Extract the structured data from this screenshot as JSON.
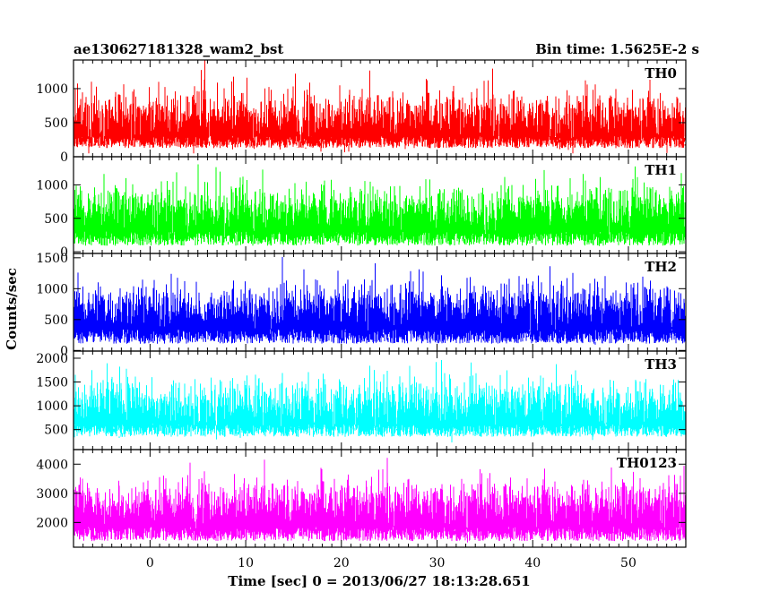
{
  "chart_data": {
    "type": "line",
    "title": "ae130627181328_wam2_bst",
    "subtitle": "Bin time: 1.5625E-2 s",
    "xlabel": "Time [sec] 0 = 2013/06/27 18:13:28.651",
    "ylabel": "Counts/sec",
    "xlim": [
      -8,
      56
    ],
    "x_ticks": [
      0,
      10,
      20,
      30,
      40,
      50
    ],
    "x_tick_labels": [
      "0",
      "10",
      "20",
      "30",
      "40",
      "50"
    ],
    "data_x_range": [
      -8,
      56
    ],
    "bin_time_s": 0.015625,
    "grid": false,
    "panels": [
      {
        "name": "TH0",
        "color": "#ff0000",
        "ylim": [
          0,
          1420
        ],
        "y_ticks": [
          0,
          500,
          1000
        ],
        "y_tick_labels": [
          "0",
          "500",
          "1000"
        ],
        "mean": 560,
        "min": 50,
        "max": 1420
      },
      {
        "name": "TH1",
        "color": "#00ff00",
        "ylim": [
          -25,
          1420
        ],
        "y_ticks": [
          0,
          500,
          1000
        ],
        "y_tick_labels": [
          "0",
          "500",
          "1000"
        ],
        "mean": 610,
        "min": 0,
        "max": 1420
      },
      {
        "name": "TH2",
        "color": "#0000ff",
        "ylim": [
          -10,
          1570
        ],
        "y_ticks": [
          0,
          500,
          1000,
          1500
        ],
        "y_tick_labels": [
          "0",
          "500",
          "1000",
          "1500"
        ],
        "mean": 680,
        "min": 10,
        "max": 1570
      },
      {
        "name": "TH3",
        "color": "#00ffff",
        "ylim": [
          80,
          2150
        ],
        "y_ticks": [
          500,
          1000,
          1500,
          2000
        ],
        "y_tick_labels": [
          "500",
          "1000",
          "1500",
          "2000"
        ],
        "mean": 1010,
        "min": 230,
        "max": 2150
      },
      {
        "name": "TH0123",
        "color": "#ff00ff",
        "ylim": [
          1150,
          4500
        ],
        "y_ticks": [
          2000,
          3000,
          4000
        ],
        "y_tick_labels": [
          "2000",
          "3000",
          "4000"
        ],
        "mean": 2560,
        "min": 1150,
        "max": 4500
      }
    ]
  }
}
